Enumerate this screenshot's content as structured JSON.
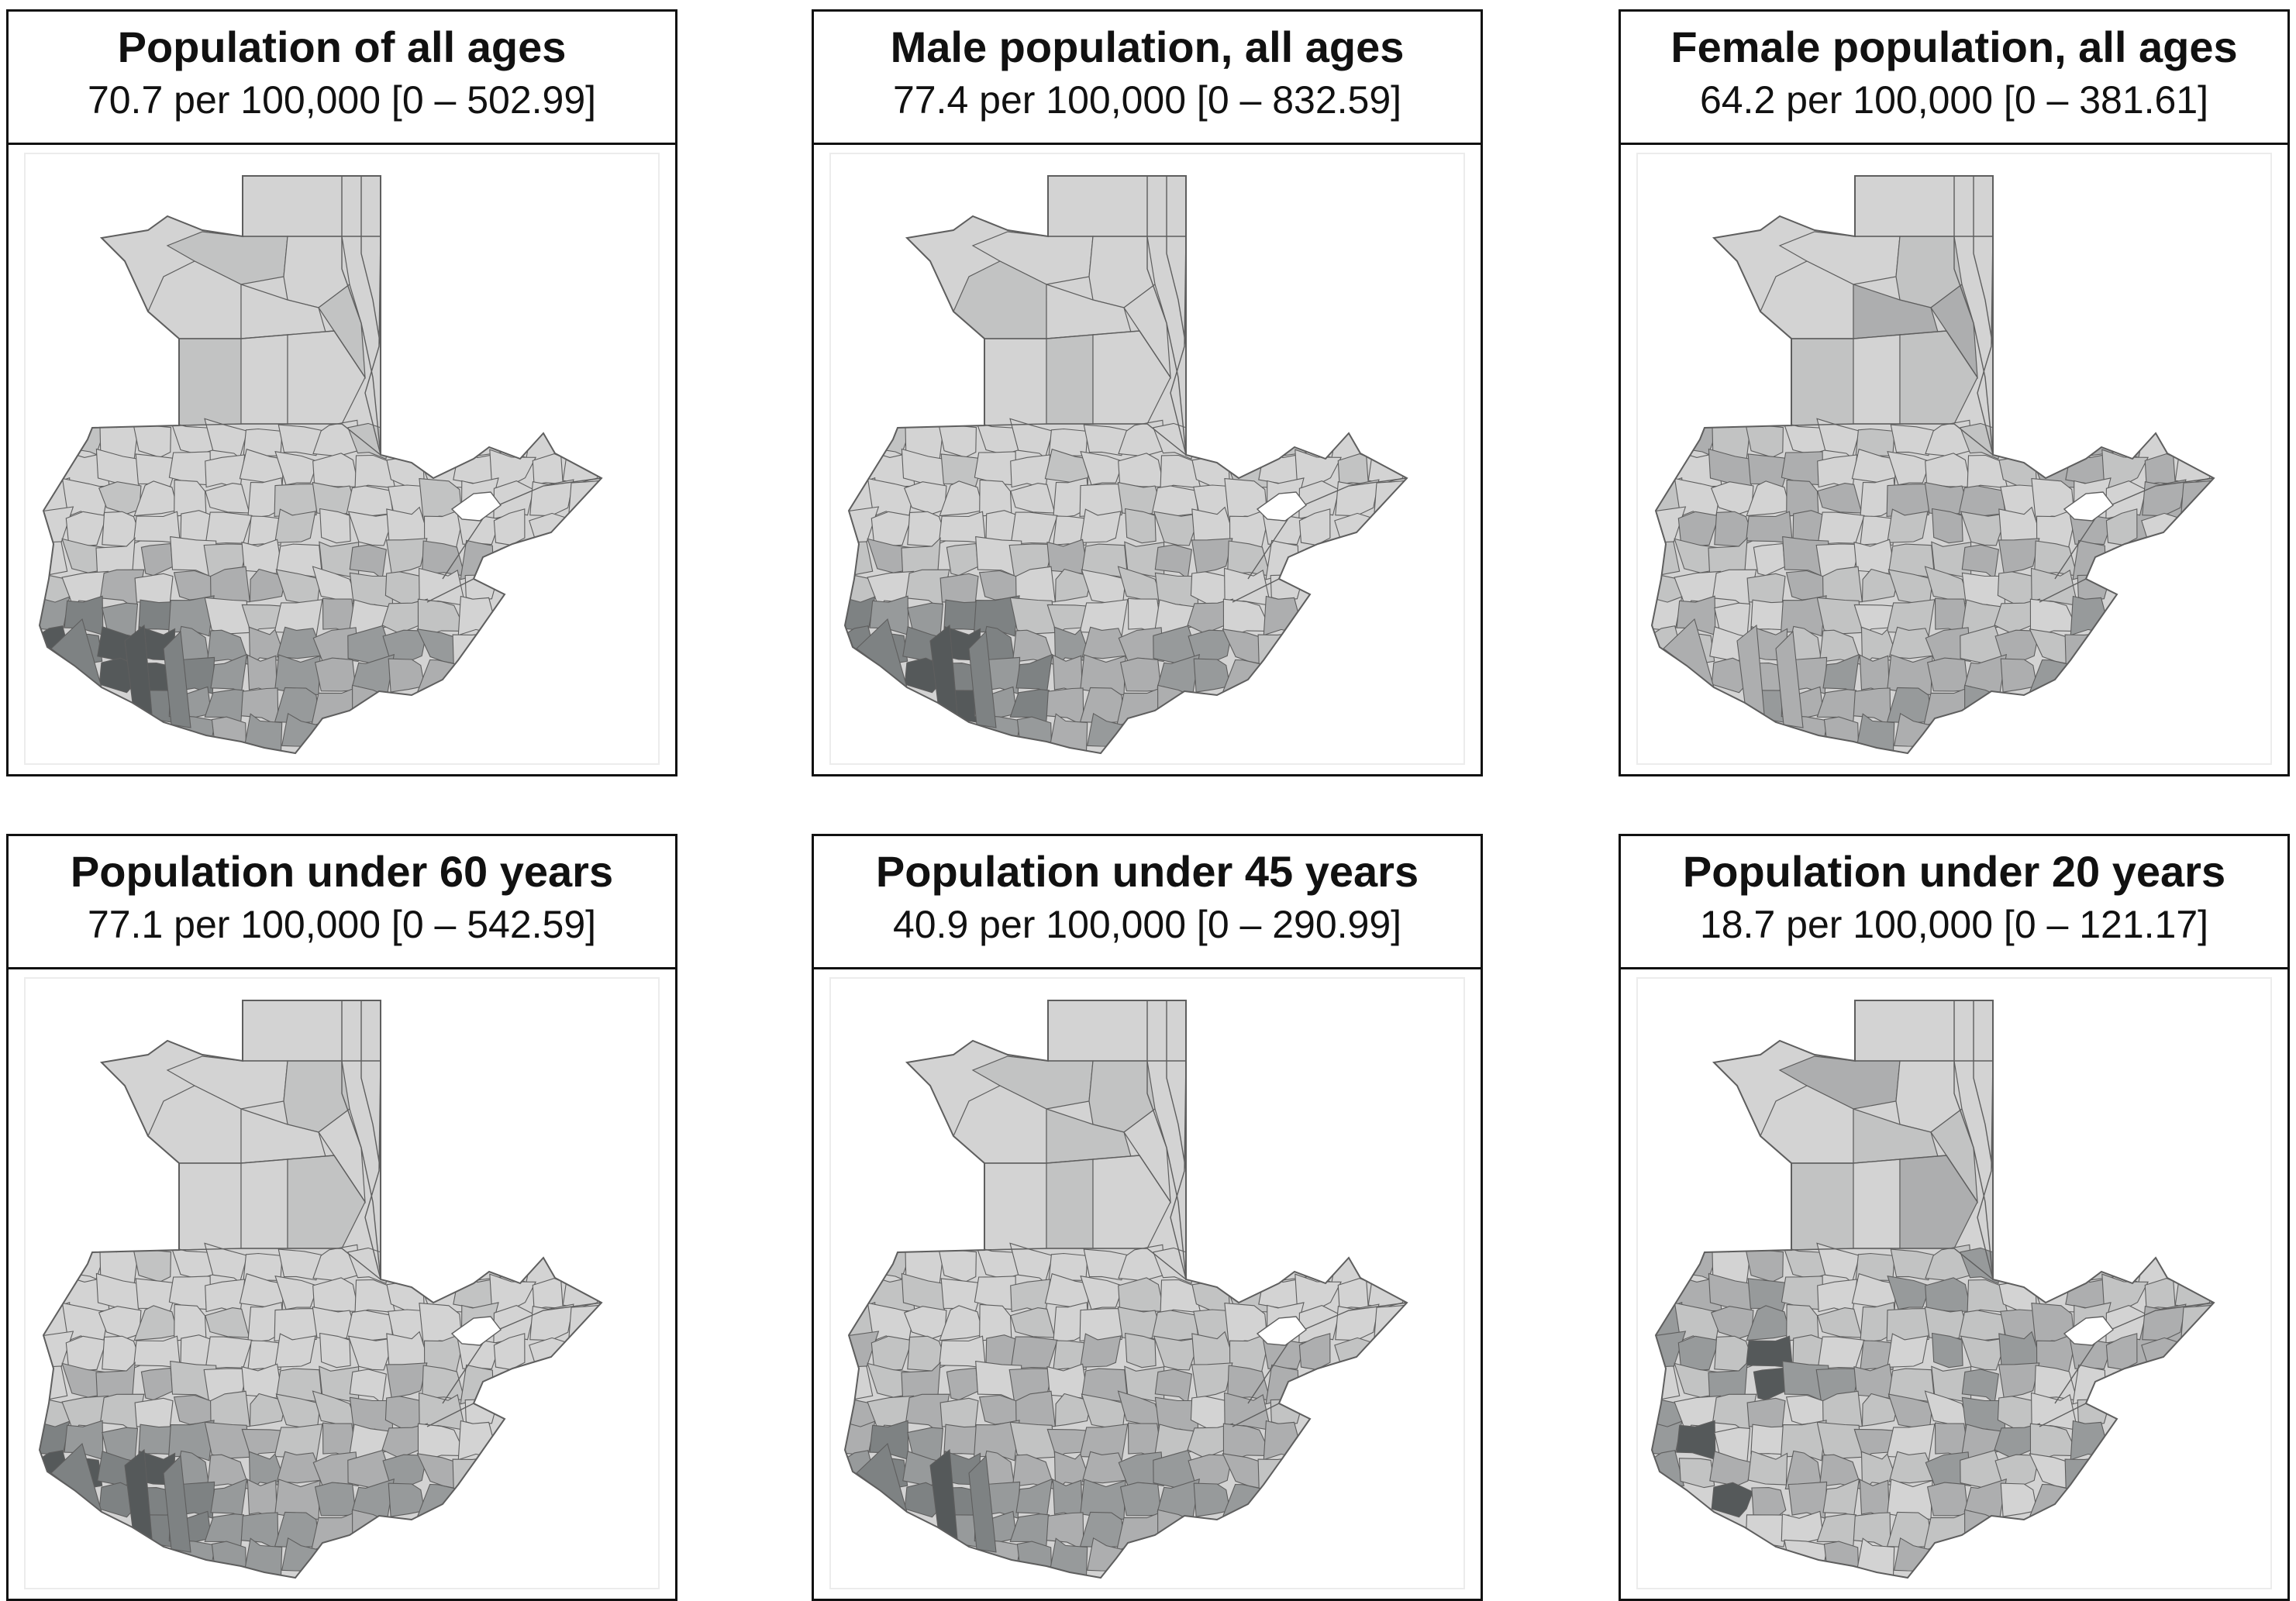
{
  "colors": {
    "base_fill": "#d3d3d3",
    "border": "#5e5e5e",
    "shade_levels": [
      "#d3d3d3",
      "#c2c3c3",
      "#adaeaf",
      "#979a9b",
      "#7e8283",
      "#55595a"
    ]
  },
  "panels": [
    {
      "title": "Population of all ages",
      "subtitle": "70.7 per 100,000 [0 – 502.99]",
      "shading_pattern": "southwest-coast-dark"
    },
    {
      "title": "Male population, all ages",
      "subtitle": "77.4 per 100,000 [0 – 832.59]",
      "shading_pattern": "southwest-coast-dark"
    },
    {
      "title": "Female population, all ages",
      "subtitle": "64.2 per 100,000 [0 – 381.61]",
      "shading_pattern": "south-coast-medium"
    },
    {
      "title": "Population under 60 years",
      "subtitle": "77.1 per 100,000 [0 – 542.59]",
      "shading_pattern": "southwest-coast-dark"
    },
    {
      "title": "Population under 45 years",
      "subtitle": "40.9 per 100,000 [0 – 290.99]",
      "shading_pattern": "southwest-coast-medium"
    },
    {
      "title": "Population under 20 years",
      "subtitle": "18.7 per 100,000 [0 – 121.17]",
      "shading_pattern": "scattered-south"
    }
  ]
}
